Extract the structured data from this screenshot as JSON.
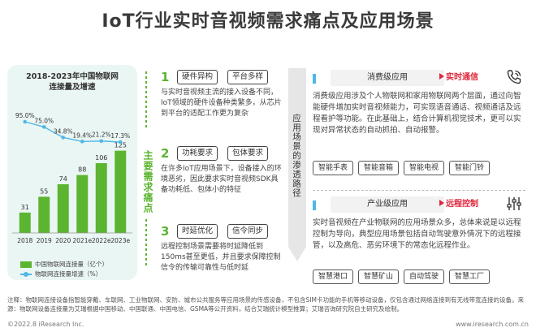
{
  "title": "IoT行业实时音视频需求痛点及应用场景",
  "chart_data": {
    "type": "bar",
    "title": "2018-2023年中国物联网连接量及增速",
    "title_lines": [
      "2018-2023年中国物联网",
      "连接量及增速"
    ],
    "categories": [
      "2018",
      "2019",
      "2020",
      "2021e",
      "2022e",
      "2023e"
    ],
    "series": [
      {
        "name": "中国物联网连接量（亿个）",
        "type": "bar",
        "values": [
          31,
          55,
          74,
          88,
          106,
          125
        ],
        "labels": [
          "31",
          "55",
          "74",
          "88",
          "106",
          "125"
        ],
        "color": "#5cb531"
      },
      {
        "name": "物联网连接量增速（%）",
        "type": "line",
        "values": [
          95.0,
          75.0,
          34.8,
          19.4,
          21.2,
          17.3
        ],
        "labels": [
          "95.0%",
          "75.0%",
          "34.8%",
          "19.4%",
          "21.2%",
          "17.3%"
        ],
        "color": "#4fb6e6"
      }
    ]
  },
  "pain_label": "主要需求痛点",
  "pain_points": [
    {
      "num": "1",
      "tags": [
        "硬件异构",
        "平台多样"
      ],
      "desc": "与实时音视频主流的接入设备不同，IoT领域的硬件设备种类繁多，从芯片到平台的适配工作更为复杂"
    },
    {
      "num": "2",
      "tags": [
        "功耗要求",
        "包体要求"
      ],
      "desc": "在许多IoT应用场景下，设备接入的环境恶劣，因此要求实时音视频SDK具备功耗低、包体小的特征"
    },
    {
      "num": "3",
      "tags": [
        "时延优化",
        "信令同步"
      ],
      "desc": "远程控制场景需要将时延降低到150ms甚至更低，并且要求保障控制信令的传输可靠性与低时延"
    }
  ],
  "route_label": "应用场景的渗透路径",
  "scenes": [
    {
      "name": "消费级应用",
      "tag": "实时通信",
      "icon": "phone-icon",
      "desc": "消费级应用涉及个人物联网和家用物联网两个层面，通过向智能硬件增加实时音视频能力，可实现语音通话、视频通话及远程看护等功能。在此基础上，结合计算机视觉技术，更可以实现对异常状态的自动抓拍、自动报警。",
      "chips": [
        "智能手表",
        "智能音箱",
        "智能电视",
        "智能门铃"
      ]
    },
    {
      "name": "产业级应用",
      "tag": "远程控制",
      "icon": "sliders-icon",
      "desc": "实时音视频在产业物联网的应用场景众多，总体来说是以远程控制为导向，典型应用场景包括自动驾驶意外情况下的远程接管，以及高危、恶劣环境下的常态化远程作业。",
      "chips": [
        "智慧港口",
        "智慧矿山",
        "自动驾驶",
        "智慧工厂"
      ]
    }
  ],
  "footnote": "注释：物联网连接设备指智能穿戴、车联网、工业物联网、安防、城市公共服务等应用场景的传感设备，不包含SIM卡功能的手机等移动设备，仅包含通过网络连接到有无线带宽连接的设备。来源：物联网设备连接量为艾瑞根据中国移动、中国联通、中国电信、GSMA等公开资料，结合艾瑞统计模型推算；艾瑞咨询研究院自主研究及绘制。",
  "footer_left": "©2022.8 iResearch Inc.",
  "footer_right": "www.iresearch.com.cn"
}
